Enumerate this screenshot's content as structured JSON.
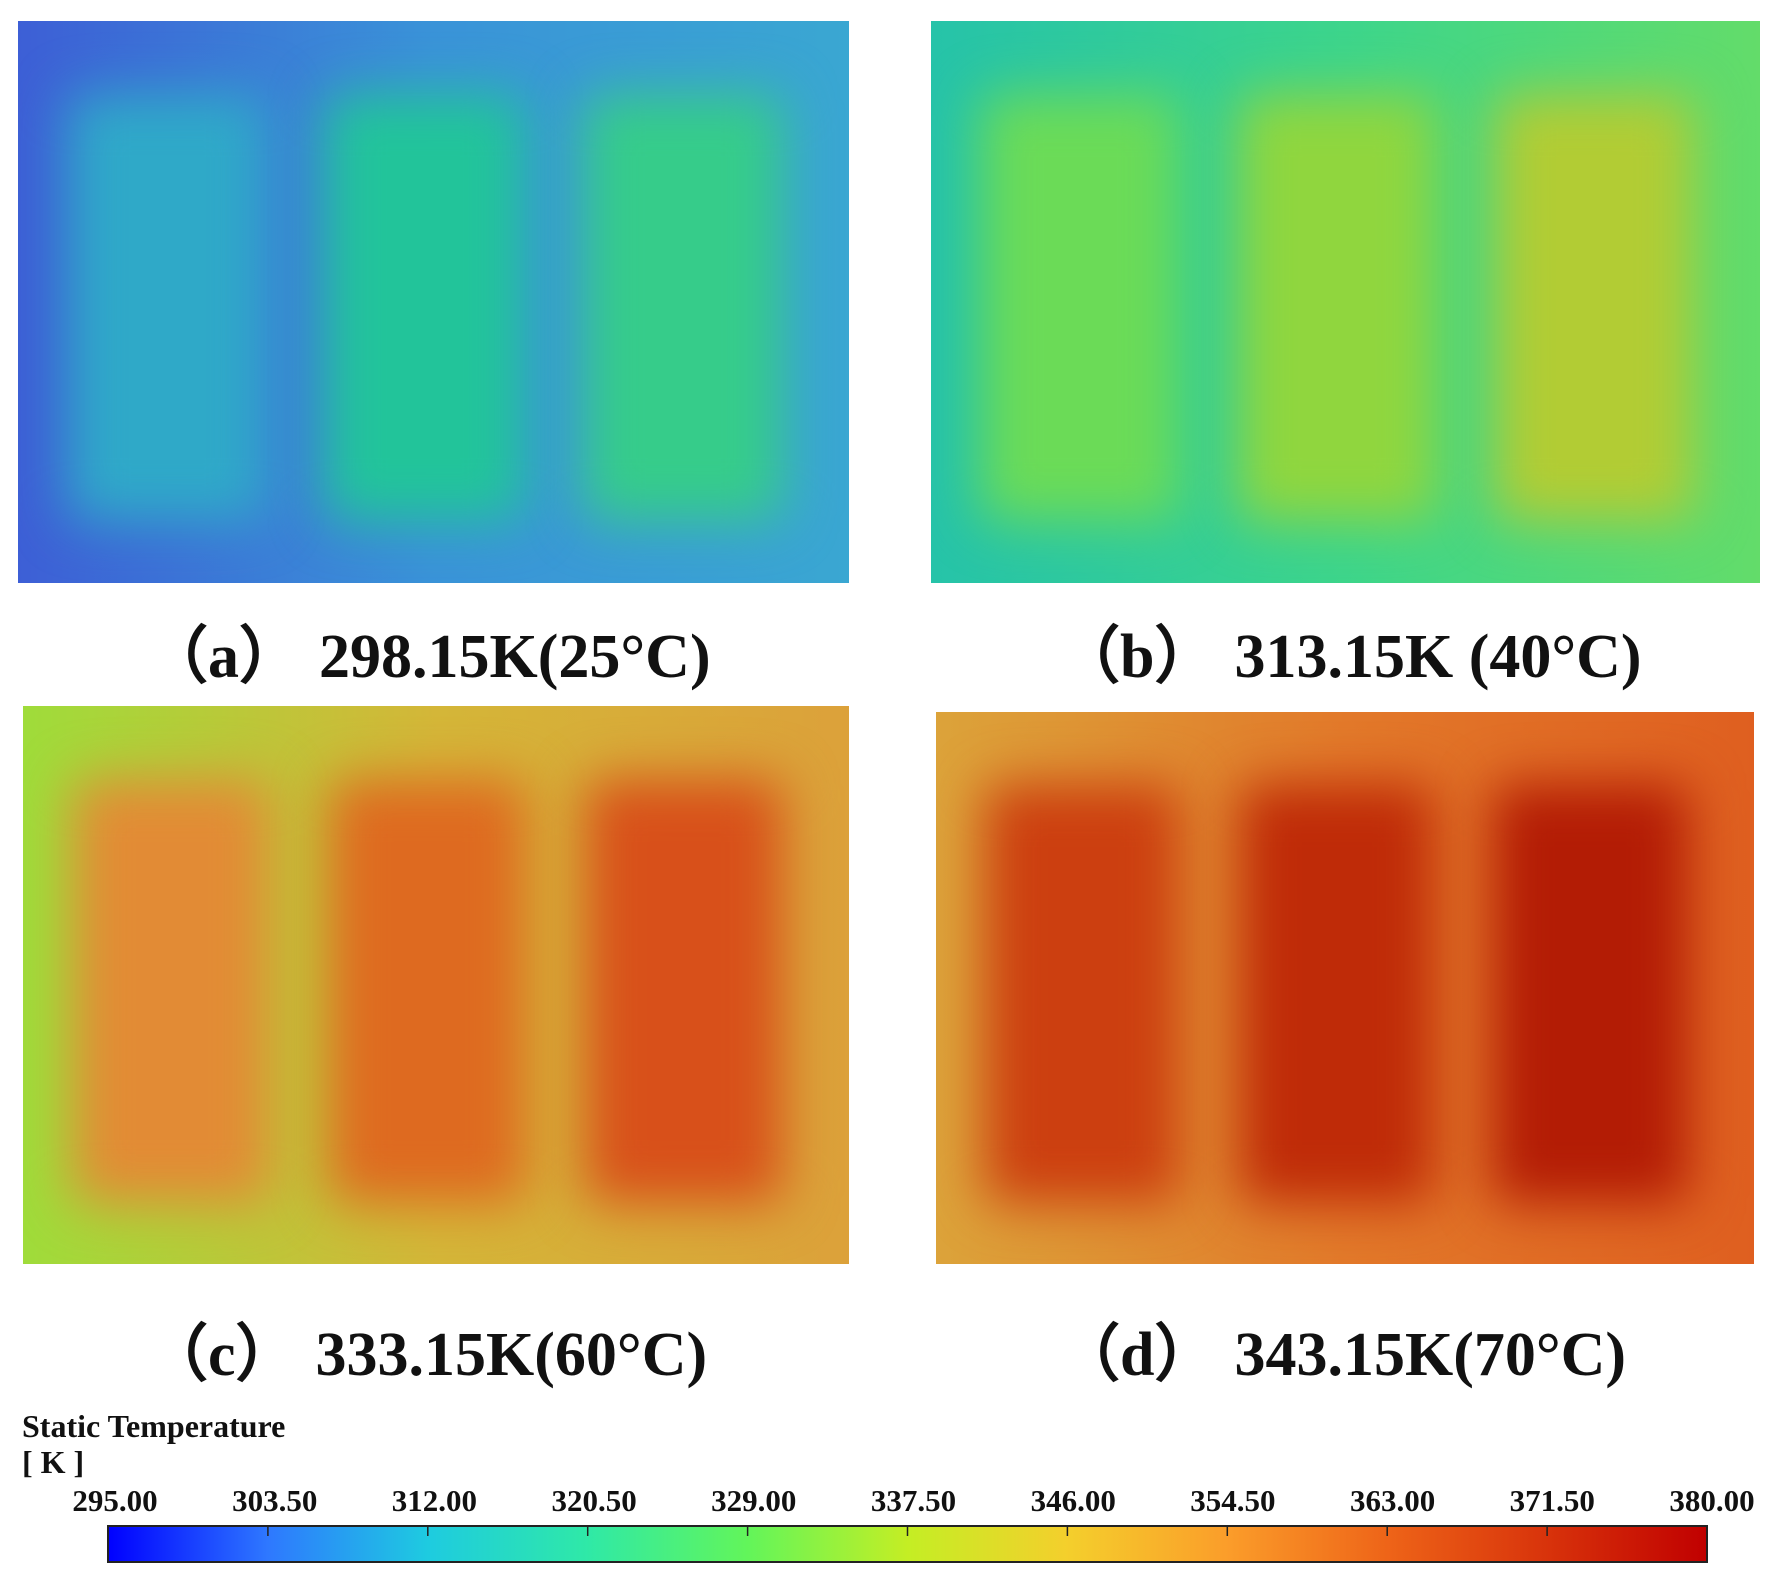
{
  "panels": [
    {
      "id": "a",
      "tag": "（a）",
      "label": "298.15K(25°C)",
      "colors": {
        "base_left": "#3d5fd6",
        "base_mid": "#3a93d8",
        "base_right": "#3aa7d2",
        "cells": [
          "#2fa9c8",
          "#22c49a",
          "#36cc8a"
        ]
      }
    },
    {
      "id": "b",
      "tag": "（b）",
      "label": "313.15K (40°C)",
      "colors": {
        "base_left": "#26c3a9",
        "base_mid": "#3dd58b",
        "base_right": "#63dc6a",
        "cells": [
          "#6bdb57",
          "#90d63e",
          "#b2cc34"
        ]
      }
    },
    {
      "id": "c",
      "tag": "（c）",
      "label": "333.15K(60°C)",
      "colors": {
        "base_left": "#9fdc3a",
        "base_mid": "#d4b638",
        "base_right": "#dca13a",
        "cells": [
          "#e28b35",
          "#de6a20",
          "#d8501a"
        ]
      }
    },
    {
      "id": "d",
      "tag": "（d）",
      "label": "343.15K(70°C)",
      "colors": {
        "base_left": "#dca33a",
        "base_mid": "#e2792a",
        "base_right": "#df5f20",
        "cells": [
          "#cc3f10",
          "#bf2b08",
          "#b31c05"
        ]
      }
    }
  ],
  "legend": {
    "title": "Static Temperature",
    "unit": "[ K ]",
    "min": 295.0,
    "max": 380.0,
    "ticks": [
      "295.00",
      "303.50",
      "312.00",
      "320.50",
      "329.00",
      "337.50",
      "346.00",
      "354.50",
      "363.00",
      "371.50",
      "380.00"
    ],
    "gradient_stops": [
      "#0000ff",
      "#2e78ff",
      "#1ecbe0",
      "#2fe9a7",
      "#62f55a",
      "#c4ee24",
      "#f4cf2c",
      "#fb9d2a",
      "#ee6418",
      "#d8330b",
      "#c00000"
    ]
  }
}
